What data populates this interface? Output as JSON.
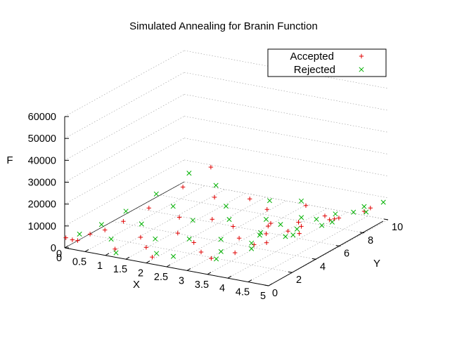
{
  "chart_data": {
    "type": "scatter",
    "subtype": "3d-scatter",
    "title": "Simulated Annealing for Branin Function",
    "xlabel": "X",
    "ylabel": "Y",
    "zlabel": "F",
    "xlim": [
      0,
      5
    ],
    "ylim": [
      0,
      10
    ],
    "zlim": [
      0,
      60000
    ],
    "x_ticks": [
      "0",
      "0.5",
      "1",
      "1.5",
      "2",
      "2.5",
      "3",
      "3.5",
      "4",
      "4.5",
      "5"
    ],
    "y_ticks": [
      "0",
      "2",
      "4",
      "6",
      "8",
      "10"
    ],
    "z_ticks": [
      "60000",
      "50000",
      "40000",
      "30000",
      "20000",
      "10000",
      "0"
    ],
    "grid": true,
    "legend_position": "top-right",
    "series": [
      {
        "name": "Accepted",
        "marker": "+",
        "color": "#e00000",
        "points": [
          [
            0.0,
            0.1,
            4300
          ],
          [
            0.1,
            0.3,
            3100
          ],
          [
            0.2,
            0.4,
            2800
          ],
          [
            0.3,
            1.1,
            4000
          ],
          [
            0.4,
            2.0,
            3500
          ],
          [
            0.5,
            3.2,
            4200
          ],
          [
            0.6,
            5.0,
            5200
          ],
          [
            0.7,
            7.5,
            7600
          ],
          [
            0.8,
            9.5,
            11000
          ],
          [
            1.0,
            0.8,
            500
          ],
          [
            1.1,
            2.6,
            800
          ],
          [
            1.2,
            5.5,
            1500
          ],
          [
            1.3,
            8.1,
            3200
          ],
          [
            1.5,
            1.7,
            300
          ],
          [
            1.6,
            4.0,
            200
          ],
          [
            1.8,
            6.2,
            600
          ],
          [
            1.9,
            9.0,
            1800
          ],
          [
            2.0,
            0.5,
            1200
          ],
          [
            2.2,
            3.3,
            100
          ],
          [
            2.4,
            5.9,
            300
          ],
          [
            2.5,
            8.4,
            900
          ],
          [
            2.7,
            2.2,
            800
          ],
          [
            2.9,
            4.7,
            300
          ],
          [
            3.0,
            7.0,
            500
          ],
          [
            3.1,
            9.6,
            1100
          ],
          [
            3.3,
            1.0,
            3600
          ],
          [
            3.5,
            3.9,
            1800
          ],
          [
            3.6,
            6.4,
            800
          ],
          [
            3.8,
            8.8,
            1200
          ],
          [
            4.0,
            0.6,
            9800
          ],
          [
            4.1,
            2.9,
            7800
          ],
          [
            4.2,
            5.3,
            5100
          ],
          [
            4.3,
            7.9,
            4300
          ],
          [
            4.5,
            1.5,
            17500
          ],
          [
            4.6,
            4.1,
            13400
          ],
          [
            4.7,
            6.9,
            9100
          ],
          [
            4.8,
            9.2,
            7100
          ],
          [
            4.9,
            0.3,
            26000
          ],
          [
            5.0,
            2.5,
            21500
          ],
          [
            5.0,
            5.1,
            14800
          ],
          [
            5.0,
            8.0,
            9900
          ]
        ]
      },
      {
        "name": "Rejected",
        "marker": "x",
        "color": "#00b000",
        "points": [
          [
            0.1,
            0.9,
            3900
          ],
          [
            0.2,
            2.4,
            4100
          ],
          [
            0.3,
            4.1,
            5400
          ],
          [
            0.4,
            6.3,
            7000
          ],
          [
            0.5,
            8.7,
            9600
          ],
          [
            0.7,
            1.5,
            1900
          ],
          [
            0.8,
            3.7,
            2500
          ],
          [
            0.9,
            6.0,
            4000
          ],
          [
            1.1,
            8.9,
            5500
          ],
          [
            1.2,
            0.2,
            1300
          ],
          [
            1.4,
            2.8,
            500
          ],
          [
            1.5,
            5.6,
            900
          ],
          [
            1.7,
            7.7,
            1700
          ],
          [
            1.9,
            1.2,
            400
          ],
          [
            2.0,
            3.6,
            150
          ],
          [
            2.1,
            6.6,
            350
          ],
          [
            2.3,
            9.3,
            1500
          ],
          [
            2.4,
            0.9,
            1700
          ],
          [
            2.6,
            4.2,
            250
          ],
          [
            2.8,
            7.3,
            700
          ],
          [
            2.9,
            9.9,
            1600
          ],
          [
            3.1,
            2.5,
            1500
          ],
          [
            3.2,
            5.4,
            600
          ],
          [
            3.4,
            8.2,
            900
          ],
          [
            3.6,
            0.4,
            6200
          ],
          [
            3.7,
            3.0,
            3400
          ],
          [
            3.9,
            5.8,
            1900
          ],
          [
            4.0,
            9.0,
            2200
          ],
          [
            4.2,
            1.3,
            12800
          ],
          [
            4.3,
            3.8,
            8600
          ],
          [
            4.4,
            6.5,
            5900
          ],
          [
            4.5,
            9.7,
            5200
          ],
          [
            4.6,
            0.7,
            20800
          ],
          [
            4.7,
            3.4,
            14600
          ],
          [
            4.8,
            6.0,
            10300
          ],
          [
            4.9,
            8.5,
            7700
          ],
          [
            5.0,
            1.0,
            25000
          ],
          [
            5.0,
            4.0,
            18300
          ],
          [
            5.0,
            7.1,
            12200
          ],
          [
            5.0,
            9.6,
            9200
          ]
        ]
      }
    ]
  }
}
